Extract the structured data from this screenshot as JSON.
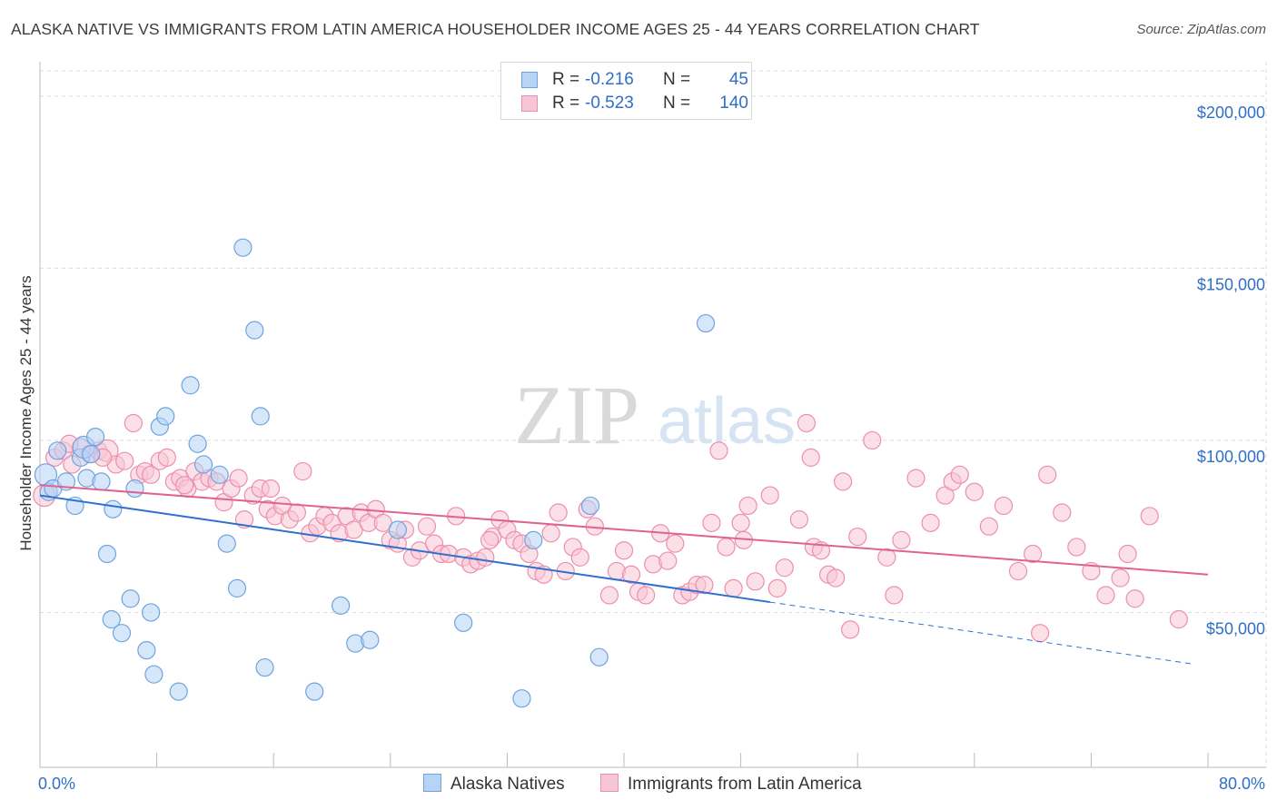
{
  "header": {
    "title": "ALASKA NATIVE VS IMMIGRANTS FROM LATIN AMERICA HOUSEHOLDER INCOME AGES 25 - 44 YEARS CORRELATION CHART",
    "source": "Source: ZipAtlas.com"
  },
  "watermark": {
    "zip": "ZIP",
    "atlas": "atlas"
  },
  "legend": {
    "r_label": "R =",
    "n_label": "N =",
    "rows": [
      {
        "r": "-0.216",
        "n": "45"
      },
      {
        "r": "-0.523",
        "n": "140"
      }
    ]
  },
  "colors": {
    "blue_fill": "#b7d3f5",
    "blue_stroke": "#6fa3e0",
    "blue_line": "#2f6fd0",
    "pink_fill": "#f7c6d6",
    "pink_stroke": "#ec8fae",
    "pink_line": "#e0628f",
    "axis_label": "#2f6fc7",
    "grid": "#dddddd"
  },
  "chart_data": {
    "type": "scatter",
    "title": "ALASKA NATIVE VS IMMIGRANTS FROM LATIN AMERICA HOUSEHOLDER INCOME AGES 25 - 44 YEARS CORRELATION CHART",
    "xlabel": "",
    "ylabel": "Householder Income Ages 25 - 44 years",
    "xlim": [
      0,
      80
    ],
    "ylim": [
      5000,
      210000
    ],
    "x_tick_labels": [
      "0.0%",
      "80.0%"
    ],
    "y_ticks": [
      50000,
      100000,
      150000,
      200000
    ],
    "y_tick_labels": [
      "$50,000",
      "$100,000",
      "$150,000",
      "$200,000"
    ],
    "grid": true,
    "legend_position": "top-center",
    "series": [
      {
        "name": "Alaska Natives",
        "r": -0.216,
        "n": 45,
        "trend": {
          "x0": 0,
          "y0": 84000,
          "x1": 50,
          "y1": 53000,
          "dashed_to_x": 79,
          "dashed_to_y": 35000
        },
        "points": [
          [
            0.4,
            90000
          ],
          [
            0.6,
            85000
          ],
          [
            0.9,
            86000
          ],
          [
            1.2,
            97000
          ],
          [
            1.8,
            88000
          ],
          [
            2.4,
            81000
          ],
          [
            2.8,
            95000
          ],
          [
            3.0,
            98000
          ],
          [
            3.2,
            89000
          ],
          [
            3.5,
            96000
          ],
          [
            3.8,
            101000
          ],
          [
            4.2,
            88000
          ],
          [
            4.6,
            67000
          ],
          [
            5.0,
            80000
          ],
          [
            6.2,
            54000
          ],
          [
            6.5,
            86000
          ],
          [
            4.9,
            48000
          ],
          [
            5.6,
            44000
          ],
          [
            7.3,
            39000
          ],
          [
            7.6,
            50000
          ],
          [
            7.8,
            32000
          ],
          [
            8.2,
            104000
          ],
          [
            8.6,
            107000
          ],
          [
            9.5,
            27000
          ],
          [
            10.3,
            116000
          ],
          [
            10.8,
            99000
          ],
          [
            11.2,
            93000
          ],
          [
            12.3,
            90000
          ],
          [
            12.8,
            70000
          ],
          [
            13.5,
            57000
          ],
          [
            13.9,
            156000
          ],
          [
            14.7,
            132000
          ],
          [
            15.1,
            107000
          ],
          [
            15.4,
            34000
          ],
          [
            18.8,
            27000
          ],
          [
            20.6,
            52000
          ],
          [
            21.6,
            41000
          ],
          [
            22.6,
            42000
          ],
          [
            24.5,
            74000
          ],
          [
            29.0,
            47000
          ],
          [
            33.0,
            25000
          ],
          [
            37.7,
            81000
          ],
          [
            38.3,
            37000
          ],
          [
            45.6,
            134000
          ],
          [
            33.8,
            71000
          ]
        ]
      },
      {
        "name": "Immigrants from Latin America",
        "r": -0.523,
        "n": 140,
        "trend": {
          "x0": 0,
          "y0": 87000,
          "x1": 80,
          "y1": 61000
        },
        "points": [
          [
            0.3,
            84000
          ],
          [
            1.0,
            95000
          ],
          [
            1.6,
            97000
          ],
          [
            2.2,
            93000
          ],
          [
            2.8,
            98000
          ],
          [
            3.4,
            96000
          ],
          [
            4.0,
            97000
          ],
          [
            4.6,
            97000
          ],
          [
            5.2,
            93000
          ],
          [
            5.8,
            94000
          ],
          [
            6.4,
            105000
          ],
          [
            6.8,
            90000
          ],
          [
            7.2,
            91000
          ],
          [
            7.6,
            90000
          ],
          [
            8.2,
            94000
          ],
          [
            8.7,
            95000
          ],
          [
            9.2,
            88000
          ],
          [
            9.6,
            89000
          ],
          [
            10.1,
            86000
          ],
          [
            10.6,
            91000
          ],
          [
            11.1,
            88000
          ],
          [
            11.6,
            89000
          ],
          [
            12.1,
            88000
          ],
          [
            12.6,
            82000
          ],
          [
            13.1,
            86000
          ],
          [
            13.6,
            89000
          ],
          [
            14.0,
            77000
          ],
          [
            14.6,
            84000
          ],
          [
            15.1,
            86000
          ],
          [
            15.6,
            80000
          ],
          [
            16.1,
            78000
          ],
          [
            16.6,
            81000
          ],
          [
            17.1,
            77000
          ],
          [
            17.6,
            79000
          ],
          [
            18.0,
            91000
          ],
          [
            18.5,
            73000
          ],
          [
            19.0,
            75000
          ],
          [
            19.5,
            78000
          ],
          [
            20.0,
            76000
          ],
          [
            20.5,
            73000
          ],
          [
            21.0,
            78000
          ],
          [
            21.5,
            74000
          ],
          [
            22.0,
            79000
          ],
          [
            22.5,
            76000
          ],
          [
            23.0,
            80000
          ],
          [
            23.5,
            76000
          ],
          [
            24.0,
            71000
          ],
          [
            24.5,
            70000
          ],
          [
            25.0,
            74000
          ],
          [
            25.5,
            66000
          ],
          [
            26.0,
            68000
          ],
          [
            26.5,
            75000
          ],
          [
            27.0,
            70000
          ],
          [
            27.5,
            67000
          ],
          [
            28.0,
            67000
          ],
          [
            28.5,
            78000
          ],
          [
            29.0,
            66000
          ],
          [
            29.5,
            64000
          ],
          [
            30.0,
            65000
          ],
          [
            30.5,
            66000
          ],
          [
            31.0,
            72000
          ],
          [
            31.5,
            77000
          ],
          [
            32.0,
            74000
          ],
          [
            32.5,
            71000
          ],
          [
            33.0,
            70000
          ],
          [
            33.5,
            67000
          ],
          [
            34.0,
            62000
          ],
          [
            34.5,
            61000
          ],
          [
            35.0,
            73000
          ],
          [
            35.5,
            79000
          ],
          [
            36.0,
            62000
          ],
          [
            36.5,
            69000
          ],
          [
            37.0,
            66000
          ],
          [
            37.5,
            80000
          ],
          [
            38.0,
            75000
          ],
          [
            39.0,
            55000
          ],
          [
            39.5,
            62000
          ],
          [
            40.0,
            68000
          ],
          [
            40.5,
            61000
          ],
          [
            41.0,
            56000
          ],
          [
            41.5,
            55000
          ],
          [
            42.0,
            64000
          ],
          [
            42.5,
            73000
          ],
          [
            43.0,
            65000
          ],
          [
            43.5,
            70000
          ],
          [
            44.0,
            55000
          ],
          [
            44.5,
            56000
          ],
          [
            45.0,
            58000
          ],
          [
            45.5,
            58000
          ],
          [
            46.0,
            76000
          ],
          [
            46.5,
            97000
          ],
          [
            47.0,
            69000
          ],
          [
            47.5,
            57000
          ],
          [
            48.0,
            76000
          ],
          [
            48.5,
            81000
          ],
          [
            49.0,
            59000
          ],
          [
            50.0,
            84000
          ],
          [
            50.5,
            57000
          ],
          [
            51.0,
            63000
          ],
          [
            52.0,
            77000
          ],
          [
            53.0,
            69000
          ],
          [
            53.5,
            68000
          ],
          [
            54.0,
            61000
          ],
          [
            54.5,
            60000
          ],
          [
            55.0,
            88000
          ],
          [
            55.5,
            45000
          ],
          [
            56.0,
            72000
          ],
          [
            57.0,
            100000
          ],
          [
            58.0,
            66000
          ],
          [
            58.5,
            55000
          ],
          [
            59.0,
            71000
          ],
          [
            60.0,
            89000
          ],
          [
            61.0,
            76000
          ],
          [
            62.0,
            84000
          ],
          [
            62.5,
            88000
          ],
          [
            63.0,
            90000
          ],
          [
            64.0,
            85000
          ],
          [
            65.0,
            75000
          ],
          [
            66.0,
            81000
          ],
          [
            67.0,
            62000
          ],
          [
            68.0,
            67000
          ],
          [
            68.5,
            44000
          ],
          [
            69.0,
            90000
          ],
          [
            70.0,
            79000
          ],
          [
            71.0,
            69000
          ],
          [
            72.0,
            62000
          ],
          [
            73.0,
            55000
          ],
          [
            74.0,
            60000
          ],
          [
            74.5,
            67000
          ],
          [
            75.0,
            54000
          ],
          [
            76.0,
            78000
          ],
          [
            78.0,
            48000
          ],
          [
            52.5,
            105000
          ],
          [
            52.8,
            95000
          ],
          [
            48.2,
            71000
          ],
          [
            30.8,
            71000
          ],
          [
            15.8,
            86000
          ],
          [
            9.9,
            87000
          ],
          [
            4.3,
            95000
          ],
          [
            2.0,
            99000
          ]
        ]
      }
    ]
  },
  "axis": {
    "ylabel": "Householder Income Ages 25 - 44 years",
    "x_left_label": "0.0%",
    "x_right_label": "80.0%",
    "y_labels": [
      "$50,000",
      "$100,000",
      "$150,000",
      "$200,000"
    ]
  },
  "bottom_legend": {
    "blue": "Alaska Natives",
    "pink": "Immigrants from Latin America"
  }
}
